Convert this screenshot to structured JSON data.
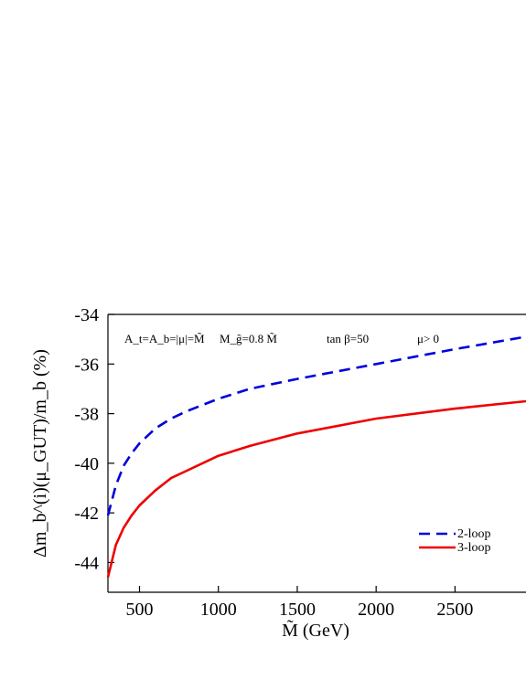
{
  "chart_data": {
    "type": "line",
    "xlabel": "M̃ (GeV)",
    "ylabel": "Δm_b^(i)(μ_GUT)/m_b (%)",
    "xlim": [
      300,
      2950
    ],
    "ylim": [
      -45.2,
      -34
    ],
    "xticks": [
      500,
      1000,
      1500,
      2000,
      2500
    ],
    "yticks": [
      -44,
      -42,
      -40,
      -38,
      -36,
      -34
    ],
    "annotations": [
      "A_t=A_b=|μ|=M̃",
      "M_g̃=0.8 M̃",
      "tan β=50",
      "μ> 0"
    ],
    "legend_position": "lower-right",
    "series": [
      {
        "name": "2-loop",
        "color": "#0000dd",
        "style": "dashed",
        "x": [
          300,
          350,
          400,
          450,
          500,
          600,
          700,
          800,
          1000,
          1200,
          1500,
          2000,
          2500,
          2950
        ],
        "y": [
          -42.1,
          -40.9,
          -40.1,
          -39.6,
          -39.2,
          -38.6,
          -38.2,
          -37.9,
          -37.4,
          -37.0,
          -36.6,
          -36.0,
          -35.4,
          -34.9
        ]
      },
      {
        "name": "3-loop",
        "color": "#ee0000",
        "style": "solid",
        "x": [
          300,
          350,
          400,
          450,
          500,
          600,
          700,
          800,
          1000,
          1200,
          1500,
          2000,
          2500,
          2950
        ],
        "y": [
          -44.6,
          -43.3,
          -42.6,
          -42.1,
          -41.7,
          -41.1,
          -40.6,
          -40.3,
          -39.7,
          -39.3,
          -38.8,
          -38.2,
          -37.8,
          -37.5
        ]
      }
    ]
  }
}
